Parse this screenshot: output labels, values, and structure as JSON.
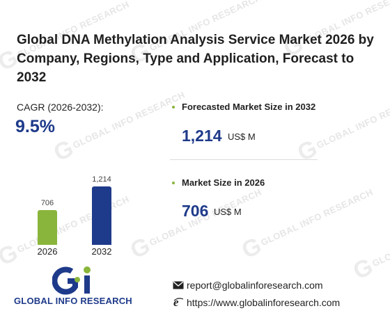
{
  "title": "Global DNA Methylation Analysis Service Market 2026 by Company, Regions, Type and Application, Forecast to 2032",
  "cagr": {
    "label": "CAGR (2026-2032):",
    "value": "9.5%"
  },
  "stats": [
    {
      "label": "Forecasted Market Size in 2032",
      "value": "1,214",
      "unit": "US$ M"
    },
    {
      "label": "Market Size in 2026",
      "value": "706",
      "unit": "US$ M"
    }
  ],
  "chart_data": {
    "type": "bar",
    "categories": [
      "2026",
      "2032"
    ],
    "values": [
      706,
      1214
    ],
    "value_labels": [
      "706",
      "1,214"
    ],
    "colors": [
      "#8ab53c",
      "#1e3a8a"
    ]
  },
  "brand": {
    "name": "GLOBAL INFO RESEARCH"
  },
  "watermark": {
    "text": "GLOBAL INFO RESEARCH"
  },
  "contacts": {
    "email": "report@globalinforesearch.com",
    "website": "https://www.globalinforesearch.com"
  },
  "icons": {
    "email": "envelope-icon",
    "website": "globe-e-icon",
    "bullet": "bullet-dot-icon"
  }
}
